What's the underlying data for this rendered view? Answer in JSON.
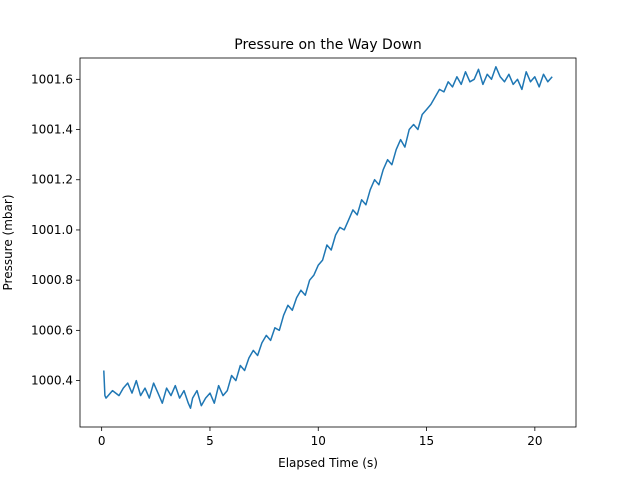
{
  "chart_data": {
    "type": "line",
    "title": "Pressure on the Way Down",
    "xlabel": "Elapsed Time (s)",
    "ylabel": "Pressure (mbar)",
    "xlim": [
      -1.0,
      21.9
    ],
    "ylim": [
      1000.215,
      1001.685
    ],
    "xticks": [
      0,
      5,
      10,
      15,
      20
    ],
    "yticks": [
      1000.4,
      1000.6,
      1000.8,
      1001.0,
      1001.2,
      1001.4,
      1001.6
    ],
    "ytick_labels": [
      "1000.4",
      "1000.6",
      "1000.8",
      "1001.0",
      "1001.2",
      "1001.4",
      "1001.6"
    ],
    "grid": false,
    "color": "#1f77b4",
    "series": [
      {
        "x": [
          0.1,
          0.15,
          0.2,
          0.5,
          0.8,
          1.0,
          1.2,
          1.4,
          1.6,
          1.8,
          2.0,
          2.2,
          2.4,
          2.6,
          2.8,
          3.0,
          3.2,
          3.4,
          3.6,
          3.8,
          4.0,
          4.1,
          4.2,
          4.4,
          4.6,
          4.8,
          5.0,
          5.2,
          5.4,
          5.6,
          5.8,
          6.0,
          6.2,
          6.4,
          6.6,
          6.8,
          7.0,
          7.2,
          7.4,
          7.6,
          7.8,
          8.0,
          8.2,
          8.4,
          8.6,
          8.8,
          9.0,
          9.2,
          9.4,
          9.6,
          9.8,
          10.0,
          10.2,
          10.4,
          10.6,
          10.8,
          11.0,
          11.2,
          11.4,
          11.6,
          11.8,
          12.0,
          12.2,
          12.4,
          12.6,
          12.8,
          13.0,
          13.2,
          13.4,
          13.6,
          13.8,
          14.0,
          14.2,
          14.4,
          14.6,
          14.8,
          15.0,
          15.2,
          15.4,
          15.6,
          15.8,
          16.0,
          16.2,
          16.4,
          16.6,
          16.8,
          17.0,
          17.2,
          17.4,
          17.6,
          17.8,
          18.0,
          18.2,
          18.4,
          18.6,
          18.8,
          19.0,
          19.2,
          19.4,
          19.6,
          19.8,
          20.0,
          20.2,
          20.4,
          20.6,
          20.8
        ],
        "y": [
          1000.44,
          1000.34,
          1000.33,
          1000.36,
          1000.34,
          1000.37,
          1000.39,
          1000.35,
          1000.4,
          1000.34,
          1000.37,
          1000.33,
          1000.39,
          1000.35,
          1000.31,
          1000.37,
          1000.34,
          1000.38,
          1000.33,
          1000.36,
          1000.31,
          1000.29,
          1000.33,
          1000.36,
          1000.3,
          1000.33,
          1000.35,
          1000.31,
          1000.38,
          1000.34,
          1000.36,
          1000.42,
          1000.4,
          1000.46,
          1000.44,
          1000.49,
          1000.52,
          1000.5,
          1000.55,
          1000.58,
          1000.56,
          1000.61,
          1000.6,
          1000.66,
          1000.7,
          1000.68,
          1000.73,
          1000.76,
          1000.74,
          1000.8,
          1000.82,
          1000.86,
          1000.88,
          1000.94,
          1000.92,
          1000.98,
          1001.01,
          1001.0,
          1001.04,
          1001.08,
          1001.06,
          1001.12,
          1001.1,
          1001.16,
          1001.2,
          1001.18,
          1001.24,
          1001.28,
          1001.26,
          1001.32,
          1001.36,
          1001.33,
          1001.4,
          1001.42,
          1001.4,
          1001.46,
          1001.48,
          1001.5,
          1001.53,
          1001.56,
          1001.55,
          1001.59,
          1001.57,
          1001.61,
          1001.58,
          1001.63,
          1001.59,
          1001.6,
          1001.64,
          1001.58,
          1001.62,
          1001.6,
          1001.65,
          1001.61,
          1001.59,
          1001.62,
          1001.58,
          1001.6,
          1001.56,
          1001.63,
          1001.59,
          1001.61,
          1001.57,
          1001.62,
          1001.59,
          1001.61
        ]
      }
    ]
  }
}
